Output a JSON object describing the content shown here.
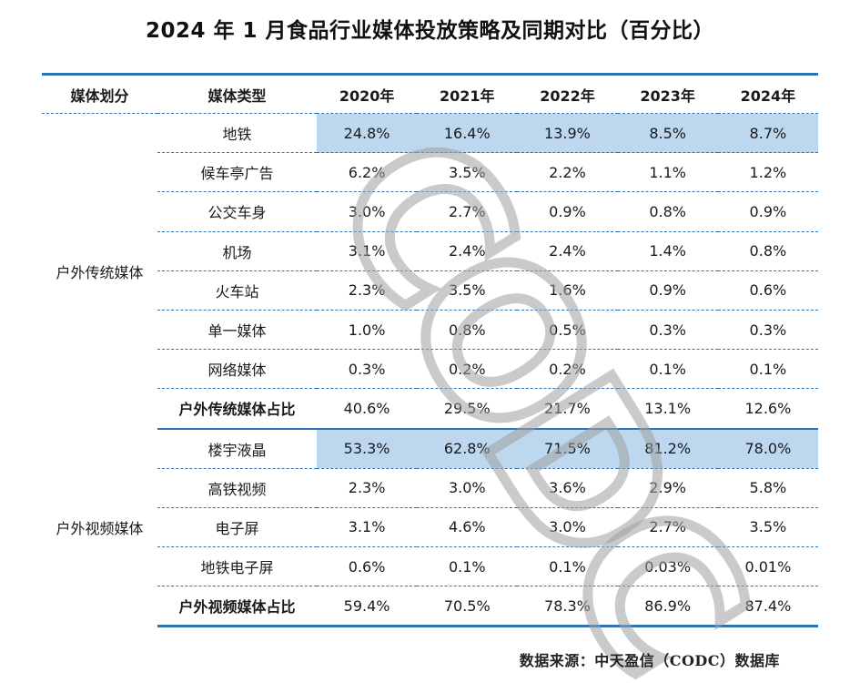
{
  "title": "2024 年 1 月食品行业媒体投放策略及同期对比（百分比）",
  "header": {
    "category": "媒体划分",
    "type": "媒体类型",
    "years": [
      "2020年",
      "2021年",
      "2022年",
      "2023年",
      "2024年"
    ]
  },
  "groups": [
    {
      "category": "户外传统媒体",
      "rows": [
        {
          "type": "地铁",
          "values": [
            "24.8%",
            "16.4%",
            "13.9%",
            "8.5%",
            "8.7%"
          ],
          "highlight": true
        },
        {
          "type": "候车亭广告",
          "values": [
            "6.2%",
            "3.5%",
            "2.2%",
            "1.1%",
            "1.2%"
          ]
        },
        {
          "type": "公交车身",
          "values": [
            "3.0%",
            "2.7%",
            "0.9%",
            "0.8%",
            "0.9%"
          ]
        },
        {
          "type": "机场",
          "values": [
            "3.1%",
            "2.4%",
            "2.4%",
            "1.4%",
            "0.8%"
          ]
        },
        {
          "type": "火车站",
          "values": [
            "2.3%",
            "3.5%",
            "1.6%",
            "0.9%",
            "0.6%"
          ]
        },
        {
          "type": "单一媒体",
          "values": [
            "1.0%",
            "0.8%",
            "0.5%",
            "0.3%",
            "0.3%"
          ]
        },
        {
          "type": "网络媒体",
          "values": [
            "0.3%",
            "0.2%",
            "0.2%",
            "0.1%",
            "0.1%"
          ]
        },
        {
          "type": "户外传统媒体占比",
          "values": [
            "40.6%",
            "29.5%",
            "21.7%",
            "13.1%",
            "12.6%"
          ],
          "subtotal": true
        }
      ]
    },
    {
      "category": "户外视频媒体",
      "rows": [
        {
          "type": "楼宇液晶",
          "values": [
            "53.3%",
            "62.8%",
            "71.5%",
            "81.2%",
            "78.0%"
          ],
          "highlight": true
        },
        {
          "type": "高铁视频",
          "values": [
            "2.3%",
            "3.0%",
            "3.6%",
            "2.9%",
            "5.8%"
          ]
        },
        {
          "type": "电子屏",
          "values": [
            "3.1%",
            "4.6%",
            "3.0%",
            "2.7%",
            "3.5%"
          ]
        },
        {
          "type": "地铁电子屏",
          "values": [
            "0.6%",
            "0.1%",
            "0.1%",
            "0.03%",
            "0.01%"
          ]
        },
        {
          "type": "户外视频媒体占比",
          "values": [
            "59.4%",
            "70.5%",
            "78.3%",
            "86.9%",
            "87.4%"
          ],
          "subtotal": true
        }
      ]
    }
  ],
  "watermark": "CODC",
  "source": "数据来源：中天盈信（CODC）数据库",
  "colors": {
    "rule": "#2e74b5",
    "highlight": "#bdd7ee",
    "watermark": "#9e9e9e"
  }
}
